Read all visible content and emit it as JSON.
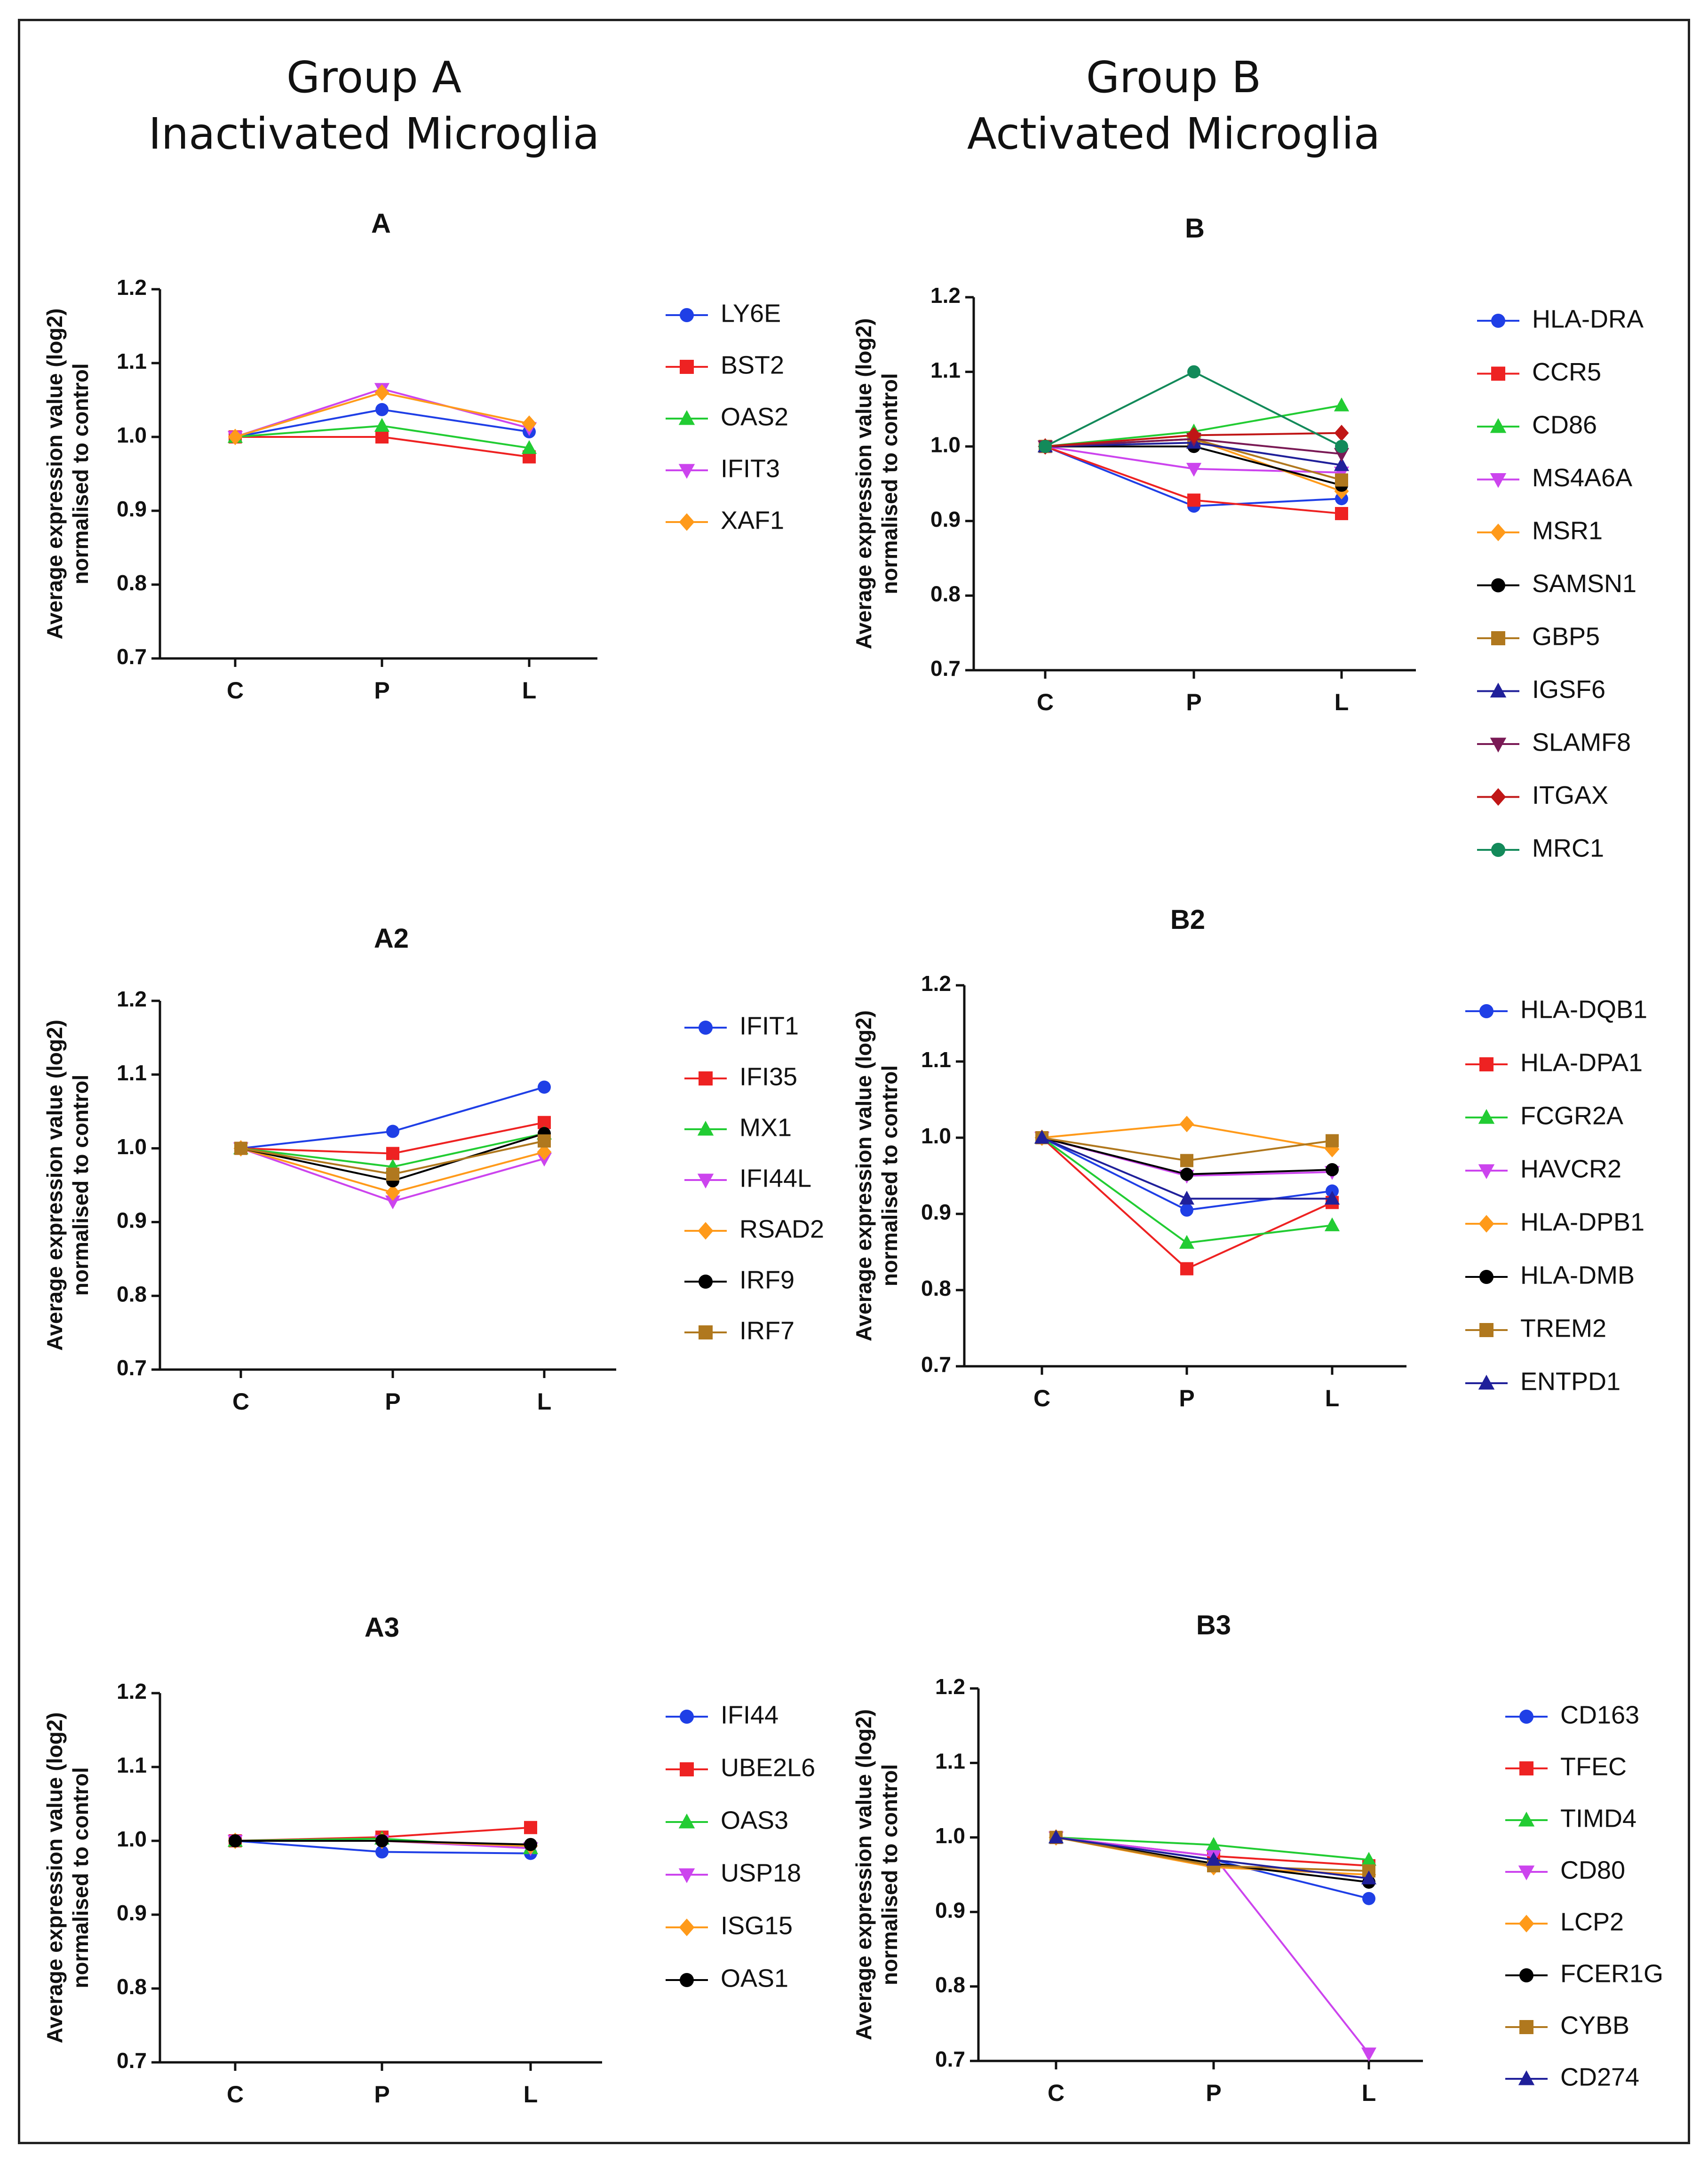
{
  "groups": {
    "a": {
      "title": "Group A",
      "subtitle": "Inactivated Microglia"
    },
    "b": {
      "title": "Group B",
      "subtitle": "Activated Microglia"
    }
  },
  "colors": {
    "blue": "#1f3fe6",
    "red": "#ee2222",
    "green": "#22cc33",
    "magenta": "#cc44ee",
    "orange": "#ff9a1a",
    "black": "#000000",
    "brown": "#b0781e",
    "navy": "#20209a",
    "purple": "#7a1a55",
    "darkred": "#c01616",
    "teal": "#138a5a"
  },
  "chart_data": [
    {
      "id": "A",
      "type": "line",
      "title": "A",
      "ylabel_line1": "Average expression value (log2)",
      "ylabel_line2": "normalised to control",
      "categories": [
        "C",
        "P",
        "L"
      ],
      "ylim": [
        0.7,
        1.2
      ],
      "yticks": [
        "0.7",
        "0.8",
        "0.9",
        "1.0",
        "1.1",
        "1.2"
      ],
      "series": [
        {
          "name": "LY6E",
          "color": "blue",
          "marker": "circle",
          "values": [
            1.0,
            1.037,
            1.007
          ]
        },
        {
          "name": "BST2",
          "color": "red",
          "marker": "square",
          "values": [
            1.0,
            1.0,
            0.973
          ]
        },
        {
          "name": "OAS2",
          "color": "green",
          "marker": "triangle-up",
          "values": [
            1.0,
            1.015,
            0.985
          ]
        },
        {
          "name": "IFIT3",
          "color": "magenta",
          "marker": "triangle-down",
          "values": [
            1.0,
            1.065,
            1.012
          ]
        },
        {
          "name": "XAF1",
          "color": "orange",
          "marker": "diamond",
          "values": [
            1.0,
            1.06,
            1.018
          ]
        }
      ]
    },
    {
      "id": "A2",
      "type": "line",
      "title": "A2",
      "ylabel_line1": "Average expression value (log2)",
      "ylabel_line2": "normalised to control",
      "categories": [
        "C",
        "P",
        "L"
      ],
      "ylim": [
        0.7,
        1.2
      ],
      "yticks": [
        "0.7",
        "0.8",
        "0.9",
        "1.0",
        "1.1",
        "1.2"
      ],
      "series": [
        {
          "name": "IFIT1",
          "color": "blue",
          "marker": "circle",
          "values": [
            1.0,
            1.023,
            1.083
          ]
        },
        {
          "name": "IFI35",
          "color": "red",
          "marker": "square",
          "values": [
            1.0,
            0.993,
            1.035
          ]
        },
        {
          "name": "MX1",
          "color": "green",
          "marker": "triangle-up",
          "values": [
            1.0,
            0.975,
            1.02
          ]
        },
        {
          "name": "IFI44L",
          "color": "magenta",
          "marker": "triangle-down",
          "values": [
            1.0,
            0.928,
            0.986
          ]
        },
        {
          "name": "RSAD2",
          "color": "orange",
          "marker": "diamond",
          "values": [
            1.0,
            0.94,
            0.995
          ]
        },
        {
          "name": "IRF9",
          "color": "black",
          "marker": "circle",
          "values": [
            1.0,
            0.956,
            1.02
          ]
        },
        {
          "name": "IRF7",
          "color": "brown",
          "marker": "square",
          "values": [
            1.0,
            0.965,
            1.01
          ]
        }
      ]
    },
    {
      "id": "A3",
      "type": "line",
      "title": "A3",
      "ylabel_line1": "Average expression value (log2)",
      "ylabel_line2": "normalised to control",
      "categories": [
        "C",
        "P",
        "L"
      ],
      "ylim": [
        0.7,
        1.2
      ],
      "yticks": [
        "0.7",
        "0.8",
        "0.9",
        "1.0",
        "1.1",
        "1.2"
      ],
      "series": [
        {
          "name": "IFI44",
          "color": "blue",
          "marker": "circle",
          "values": [
            1.0,
            0.985,
            0.983
          ]
        },
        {
          "name": "UBE2L6",
          "color": "red",
          "marker": "square",
          "values": [
            1.0,
            1.005,
            1.018
          ]
        },
        {
          "name": "OAS3",
          "color": "green",
          "marker": "triangle-up",
          "values": [
            1.0,
            1.003,
            0.99
          ]
        },
        {
          "name": "USP18",
          "color": "magenta",
          "marker": "triangle-down",
          "values": [
            1.0,
            1.0,
            0.99
          ]
        },
        {
          "name": "ISG15",
          "color": "orange",
          "marker": "diamond",
          "values": [
            1.0,
            1.0,
            0.993
          ]
        },
        {
          "name": "OAS1",
          "color": "black",
          "marker": "circle",
          "values": [
            1.0,
            1.0,
            0.995
          ]
        }
      ]
    },
    {
      "id": "B",
      "type": "line",
      "title": "B",
      "ylabel_line1": "Average expression value (log2)",
      "ylabel_line2": "normalised to control",
      "categories": [
        "C",
        "P",
        "L"
      ],
      "ylim": [
        0.7,
        1.2
      ],
      "yticks": [
        "0.7",
        "0.8",
        "0.9",
        "1.0",
        "1.1",
        "1.2"
      ],
      "series": [
        {
          "name": "HLA-DRA",
          "color": "blue",
          "marker": "circle",
          "values": [
            1.0,
            0.92,
            0.93
          ]
        },
        {
          "name": "CCR5",
          "color": "red",
          "marker": "square",
          "values": [
            1.0,
            0.928,
            0.91
          ]
        },
        {
          "name": "CD86",
          "color": "green",
          "marker": "triangle-up",
          "values": [
            1.0,
            1.02,
            1.055
          ]
        },
        {
          "name": "MS4A6A",
          "color": "magenta",
          "marker": "triangle-down",
          "values": [
            1.0,
            0.97,
            0.965
          ]
        },
        {
          "name": "MSR1",
          "color": "orange",
          "marker": "diamond",
          "values": [
            1.0,
            1.01,
            0.94
          ]
        },
        {
          "name": "SAMSN1",
          "color": "black",
          "marker": "circle",
          "values": [
            1.0,
            1.0,
            0.948
          ]
        },
        {
          "name": "GBP5",
          "color": "brown",
          "marker": "square",
          "values": [
            1.0,
            1.01,
            0.955
          ]
        },
        {
          "name": "IGSF6",
          "color": "navy",
          "marker": "triangle-up",
          "values": [
            1.0,
            1.005,
            0.975
          ]
        },
        {
          "name": "SLAMF8",
          "color": "purple",
          "marker": "triangle-down",
          "values": [
            1.0,
            1.01,
            0.99
          ]
        },
        {
          "name": "ITGAX",
          "color": "darkred",
          "marker": "diamond",
          "values": [
            1.0,
            1.015,
            1.018
          ]
        },
        {
          "name": "MRC1",
          "color": "teal",
          "marker": "circle",
          "values": [
            1.0,
            1.1,
            1.0
          ]
        }
      ]
    },
    {
      "id": "B2",
      "type": "line",
      "title": "B2",
      "ylabel_line1": "Average expression value (log2)",
      "ylabel_line2": "normalised to control",
      "categories": [
        "C",
        "P",
        "L"
      ],
      "ylim": [
        0.7,
        1.2
      ],
      "yticks": [
        "0.7",
        "0.8",
        "0.9",
        "1.0",
        "1.1",
        "1.2"
      ],
      "series": [
        {
          "name": "HLA-DQB1",
          "color": "blue",
          "marker": "circle",
          "values": [
            1.0,
            0.905,
            0.93
          ]
        },
        {
          "name": "HLA-DPA1",
          "color": "red",
          "marker": "square",
          "values": [
            1.0,
            0.828,
            0.915
          ]
        },
        {
          "name": "FCGR2A",
          "color": "green",
          "marker": "triangle-up",
          "values": [
            1.0,
            0.862,
            0.885
          ]
        },
        {
          "name": "HAVCR2",
          "color": "magenta",
          "marker": "triangle-down",
          "values": [
            1.0,
            0.95,
            0.955
          ]
        },
        {
          "name": "HLA-DPB1",
          "color": "orange",
          "marker": "diamond",
          "values": [
            1.0,
            1.018,
            0.985
          ]
        },
        {
          "name": "HLA-DMB",
          "color": "black",
          "marker": "circle",
          "values": [
            1.0,
            0.952,
            0.958
          ]
        },
        {
          "name": "TREM2",
          "color": "brown",
          "marker": "square",
          "values": [
            1.0,
            0.97,
            0.996
          ]
        },
        {
          "name": "ENTPD1",
          "color": "navy",
          "marker": "triangle-up",
          "values": [
            1.0,
            0.92,
            0.92
          ]
        }
      ]
    },
    {
      "id": "B3",
      "type": "line",
      "title": "B3",
      "ylabel_line1": "Average expression value (log2)",
      "ylabel_line2": "normalised to control",
      "categories": [
        "C",
        "P",
        "L"
      ],
      "ylim": [
        0.7,
        1.2
      ],
      "yticks": [
        "0.7",
        "0.8",
        "0.9",
        "1.0",
        "1.1",
        "1.2"
      ],
      "series": [
        {
          "name": "CD163",
          "color": "blue",
          "marker": "circle",
          "values": [
            1.0,
            0.97,
            0.918
          ]
        },
        {
          "name": "TFEC",
          "color": "red",
          "marker": "square",
          "values": [
            1.0,
            0.975,
            0.962
          ]
        },
        {
          "name": "TIMD4",
          "color": "green",
          "marker": "triangle-up",
          "values": [
            1.0,
            0.99,
            0.97
          ]
        },
        {
          "name": "CD80",
          "color": "magenta",
          "marker": "triangle-down",
          "values": [
            1.0,
            0.975,
            0.71
          ]
        },
        {
          "name": "LCP2",
          "color": "orange",
          "marker": "diamond",
          "values": [
            1.0,
            0.96,
            0.95
          ]
        },
        {
          "name": "FCER1G",
          "color": "black",
          "marker": "circle",
          "values": [
            1.0,
            0.965,
            0.94
          ]
        },
        {
          "name": "CYBB",
          "color": "brown",
          "marker": "square",
          "values": [
            1.0,
            0.962,
            0.955
          ]
        },
        {
          "name": "CD274",
          "color": "navy",
          "marker": "triangle-up",
          "values": [
            1.0,
            0.97,
            0.945
          ]
        }
      ]
    }
  ]
}
